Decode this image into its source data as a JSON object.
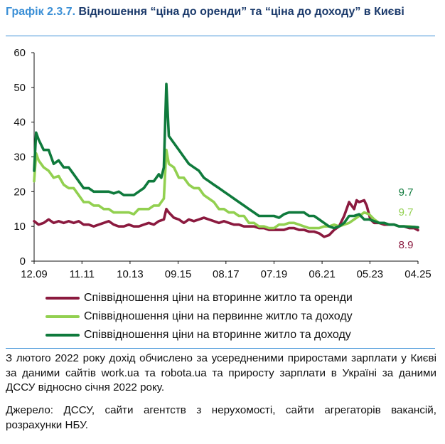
{
  "title": {
    "number": "Графік 2.3.7.",
    "text": "Відношення “ціна до оренди” та “ціна до доходу” в Києві"
  },
  "chart_data": {
    "type": "line",
    "ylim": [
      0,
      60
    ],
    "yticks": [
      0,
      10,
      20,
      30,
      40,
      50,
      60
    ],
    "xlim": [
      2009.92,
      2025.25
    ],
    "xticks": [
      {
        "label": "12.09",
        "x": 2009.92
      },
      {
        "label": "11.11",
        "x": 2011.83
      },
      {
        "label": "10.13",
        "x": 2013.75
      },
      {
        "label": "09.15",
        "x": 2015.67
      },
      {
        "label": "08.17",
        "x": 2017.58
      },
      {
        "label": "07.19",
        "x": 2019.5
      },
      {
        "label": "06.21",
        "x": 2021.42
      },
      {
        "label": "05.23",
        "x": 2023.33
      },
      {
        "label": "04.25",
        "x": 2025.25
      }
    ],
    "series": [
      {
        "name": "Співвідношення ціни на вторинне житло та оренди",
        "color": "#8b1a3f",
        "end_label": "8.9",
        "points": [
          [
            2009.92,
            11.5
          ],
          [
            2010.1,
            10.5
          ],
          [
            2010.3,
            11
          ],
          [
            2010.5,
            12
          ],
          [
            2010.7,
            11
          ],
          [
            2010.9,
            11.5
          ],
          [
            2011.1,
            11
          ],
          [
            2011.3,
            11.5
          ],
          [
            2011.5,
            11
          ],
          [
            2011.7,
            11.5
          ],
          [
            2011.9,
            10.5
          ],
          [
            2012.1,
            10.5
          ],
          [
            2012.3,
            10
          ],
          [
            2012.5,
            10.5
          ],
          [
            2012.7,
            11
          ],
          [
            2012.9,
            11.5
          ],
          [
            2013.1,
            10.5
          ],
          [
            2013.3,
            10
          ],
          [
            2013.5,
            10
          ],
          [
            2013.7,
            10.5
          ],
          [
            2013.9,
            10
          ],
          [
            2014.1,
            10
          ],
          [
            2014.3,
            10.5
          ],
          [
            2014.5,
            11
          ],
          [
            2014.7,
            10.5
          ],
          [
            2014.9,
            11.5
          ],
          [
            2015.1,
            12
          ],
          [
            2015.2,
            15
          ],
          [
            2015.3,
            14
          ],
          [
            2015.5,
            12.5
          ],
          [
            2015.7,
            12
          ],
          [
            2015.9,
            11
          ],
          [
            2016.1,
            12
          ],
          [
            2016.3,
            11.5
          ],
          [
            2016.5,
            12
          ],
          [
            2016.7,
            12.5
          ],
          [
            2016.9,
            12
          ],
          [
            2017.1,
            11.5
          ],
          [
            2017.3,
            11
          ],
          [
            2017.5,
            11.5
          ],
          [
            2017.7,
            11
          ],
          [
            2017.9,
            10.5
          ],
          [
            2018.1,
            10.5
          ],
          [
            2018.3,
            10
          ],
          [
            2018.5,
            10
          ],
          [
            2018.7,
            10
          ],
          [
            2018.9,
            9.5
          ],
          [
            2019.1,
            9.5
          ],
          [
            2019.3,
            9
          ],
          [
            2019.5,
            9
          ],
          [
            2019.7,
            9
          ],
          [
            2019.9,
            9
          ],
          [
            2020.1,
            9.5
          ],
          [
            2020.3,
            9.5
          ],
          [
            2020.5,
            9
          ],
          [
            2020.7,
            9
          ],
          [
            2020.9,
            8.5
          ],
          [
            2021.1,
            8.5
          ],
          [
            2021.3,
            8
          ],
          [
            2021.5,
            7
          ],
          [
            2021.7,
            7.5
          ],
          [
            2021.9,
            9
          ],
          [
            2022.1,
            10
          ],
          [
            2022.3,
            13
          ],
          [
            2022.5,
            17
          ],
          [
            2022.7,
            15
          ],
          [
            2022.8,
            17.5
          ],
          [
            2022.9,
            17
          ],
          [
            2023.1,
            17.5
          ],
          [
            2023.2,
            16
          ],
          [
            2023.35,
            12
          ],
          [
            2023.5,
            11
          ],
          [
            2023.7,
            11
          ],
          [
            2023.9,
            10.5
          ],
          [
            2024.1,
            10.5
          ],
          [
            2024.3,
            10.5
          ],
          [
            2024.5,
            10
          ],
          [
            2024.7,
            10
          ],
          [
            2024.9,
            9.5
          ],
          [
            2025.1,
            9.5
          ],
          [
            2025.25,
            8.9
          ]
        ]
      },
      {
        "name": "Співвідношення ціни на первинне житло та доходу",
        "color": "#92d050",
        "end_label": "9.7",
        "points": [
          [
            2009.92,
            23
          ],
          [
            2010.0,
            31
          ],
          [
            2010.1,
            29
          ],
          [
            2010.3,
            27
          ],
          [
            2010.5,
            26
          ],
          [
            2010.7,
            24
          ],
          [
            2010.9,
            24.5
          ],
          [
            2011.1,
            22
          ],
          [
            2011.3,
            21
          ],
          [
            2011.5,
            21
          ],
          [
            2011.7,
            19
          ],
          [
            2011.9,
            17
          ],
          [
            2012.1,
            17
          ],
          [
            2012.3,
            16
          ],
          [
            2012.5,
            16
          ],
          [
            2012.7,
            15
          ],
          [
            2012.9,
            15
          ],
          [
            2013.1,
            14
          ],
          [
            2013.3,
            14
          ],
          [
            2013.5,
            14
          ],
          [
            2013.7,
            14
          ],
          [
            2013.9,
            13.5
          ],
          [
            2014.1,
            15
          ],
          [
            2014.3,
            15
          ],
          [
            2014.5,
            15
          ],
          [
            2014.7,
            16
          ],
          [
            2014.9,
            16
          ],
          [
            2015.0,
            17
          ],
          [
            2015.1,
            18
          ],
          [
            2015.2,
            32
          ],
          [
            2015.3,
            28
          ],
          [
            2015.5,
            27
          ],
          [
            2015.7,
            24
          ],
          [
            2015.9,
            24
          ],
          [
            2016.1,
            22
          ],
          [
            2016.3,
            21
          ],
          [
            2016.5,
            21
          ],
          [
            2016.7,
            19
          ],
          [
            2016.9,
            18
          ],
          [
            2017.1,
            17
          ],
          [
            2017.3,
            15
          ],
          [
            2017.5,
            15
          ],
          [
            2017.7,
            14
          ],
          [
            2017.9,
            14
          ],
          [
            2018.1,
            13
          ],
          [
            2018.3,
            13
          ],
          [
            2018.5,
            11
          ],
          [
            2018.7,
            11
          ],
          [
            2018.9,
            10
          ],
          [
            2019.1,
            10
          ],
          [
            2019.3,
            9.5
          ],
          [
            2019.5,
            9.5
          ],
          [
            2019.7,
            10.5
          ],
          [
            2019.9,
            10.5
          ],
          [
            2020.1,
            11
          ],
          [
            2020.3,
            11
          ],
          [
            2020.5,
            10.5
          ],
          [
            2020.7,
            10
          ],
          [
            2020.9,
            9.5
          ],
          [
            2021.1,
            9.5
          ],
          [
            2021.3,
            9.5
          ],
          [
            2021.5,
            10
          ],
          [
            2021.7,
            10
          ],
          [
            2021.9,
            10.5
          ],
          [
            2022.1,
            10
          ],
          [
            2022.3,
            10.5
          ],
          [
            2022.5,
            11
          ],
          [
            2022.7,
            12
          ],
          [
            2022.9,
            13
          ],
          [
            2023.1,
            14
          ],
          [
            2023.3,
            13.5
          ],
          [
            2023.5,
            12
          ],
          [
            2023.7,
            11
          ],
          [
            2023.9,
            11
          ],
          [
            2024.1,
            10.5
          ],
          [
            2024.3,
            10.5
          ],
          [
            2024.5,
            10
          ],
          [
            2024.7,
            10
          ],
          [
            2024.9,
            10
          ],
          [
            2025.1,
            9.8
          ],
          [
            2025.25,
            9.7
          ]
        ]
      },
      {
        "name": "Співвідношення ціни на вторинне житло та доходу",
        "color": "#0f7a3c",
        "end_label": "9.7",
        "points": [
          [
            2009.92,
            26
          ],
          [
            2010.0,
            37
          ],
          [
            2010.1,
            35
          ],
          [
            2010.3,
            32
          ],
          [
            2010.5,
            32
          ],
          [
            2010.7,
            28
          ],
          [
            2010.9,
            29
          ],
          [
            2011.1,
            27
          ],
          [
            2011.3,
            27
          ],
          [
            2011.5,
            25
          ],
          [
            2011.7,
            23
          ],
          [
            2011.9,
            21
          ],
          [
            2012.1,
            21
          ],
          [
            2012.3,
            20
          ],
          [
            2012.5,
            20
          ],
          [
            2012.7,
            20
          ],
          [
            2012.9,
            20
          ],
          [
            2013.1,
            19.5
          ],
          [
            2013.3,
            20
          ],
          [
            2013.5,
            19
          ],
          [
            2013.7,
            19
          ],
          [
            2013.9,
            19
          ],
          [
            2014.1,
            20
          ],
          [
            2014.3,
            21
          ],
          [
            2014.5,
            23
          ],
          [
            2014.7,
            23
          ],
          [
            2014.9,
            25
          ],
          [
            2015.0,
            24
          ],
          [
            2015.1,
            27
          ],
          [
            2015.2,
            51
          ],
          [
            2015.3,
            36
          ],
          [
            2015.5,
            34
          ],
          [
            2015.7,
            32
          ],
          [
            2015.9,
            30
          ],
          [
            2016.1,
            28
          ],
          [
            2016.3,
            27
          ],
          [
            2016.5,
            26
          ],
          [
            2016.7,
            24
          ],
          [
            2016.9,
            23
          ],
          [
            2017.1,
            22
          ],
          [
            2017.3,
            21
          ],
          [
            2017.5,
            20
          ],
          [
            2017.7,
            19
          ],
          [
            2017.9,
            18
          ],
          [
            2018.1,
            17
          ],
          [
            2018.3,
            16
          ],
          [
            2018.5,
            15
          ],
          [
            2018.7,
            14
          ],
          [
            2018.9,
            13
          ],
          [
            2019.1,
            13
          ],
          [
            2019.3,
            13
          ],
          [
            2019.5,
            13
          ],
          [
            2019.7,
            12.5
          ],
          [
            2019.9,
            13.5
          ],
          [
            2020.1,
            14
          ],
          [
            2020.3,
            14
          ],
          [
            2020.5,
            14
          ],
          [
            2020.7,
            14
          ],
          [
            2020.9,
            13
          ],
          [
            2021.1,
            13
          ],
          [
            2021.3,
            12
          ],
          [
            2021.5,
            11
          ],
          [
            2021.7,
            10
          ],
          [
            2021.9,
            9.5
          ],
          [
            2022.1,
            10
          ],
          [
            2022.3,
            11
          ],
          [
            2022.5,
            13
          ],
          [
            2022.7,
            13
          ],
          [
            2022.9,
            13.5
          ],
          [
            2023.1,
            12
          ],
          [
            2023.3,
            12
          ],
          [
            2023.5,
            11.5
          ],
          [
            2023.7,
            11
          ],
          [
            2023.9,
            11
          ],
          [
            2024.1,
            10.5
          ],
          [
            2024.3,
            10.5
          ],
          [
            2024.5,
            10
          ],
          [
            2024.7,
            10
          ],
          [
            2024.9,
            9.8
          ],
          [
            2025.1,
            9.8
          ],
          [
            2025.25,
            9.7
          ]
        ]
      }
    ]
  },
  "note": "З лютого 2022 року дохід обчислено за усередненими приростами зарплати у Києві за даними сайтів work.ua та robota.ua та приросту зарплати в Україні за даними ДССУ відносно січня 2022 року.",
  "source": "Джерело: ДССУ, сайти агентств з нерухомості, сайти агрегаторів вакансій, розрахунки НБУ."
}
